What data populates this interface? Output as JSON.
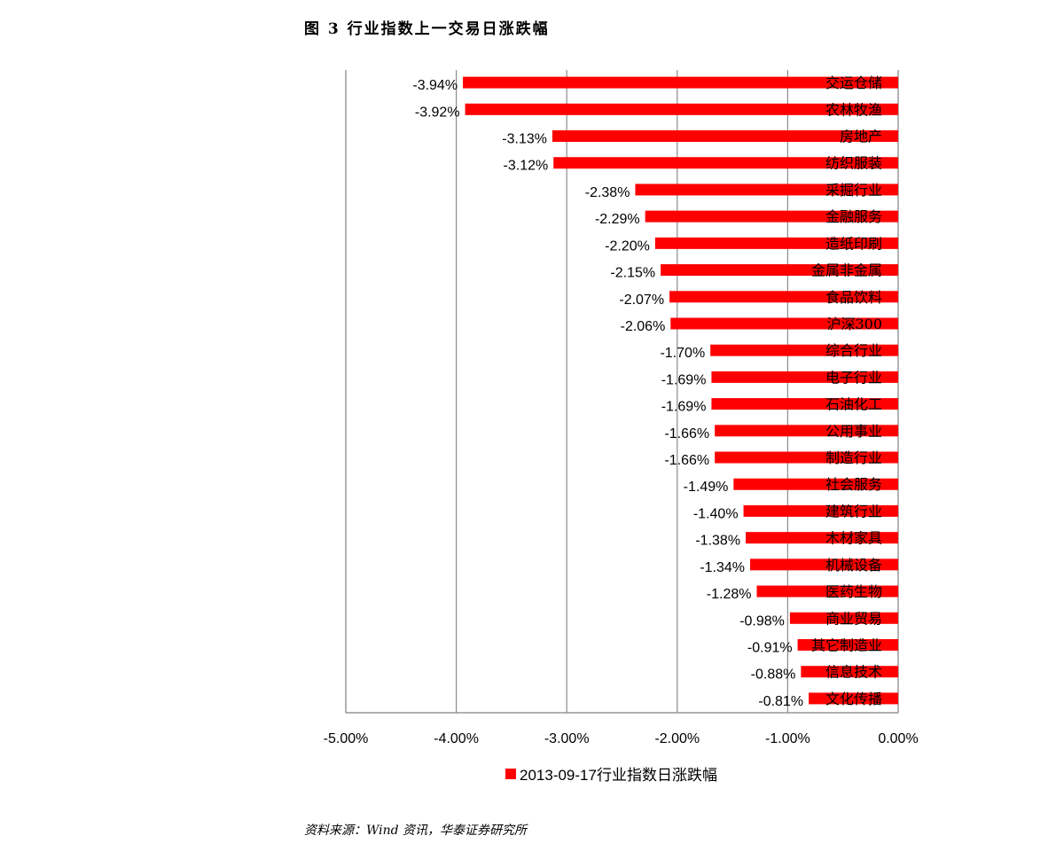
{
  "header": {
    "title": "图 3   行业指数上一交易日涨跌幅"
  },
  "chart_data": {
    "type": "bar",
    "orientation": "horizontal",
    "categories": [
      "交运仓储",
      "农林牧渔",
      "房地产",
      "纺织服装",
      "采掘行业",
      "金融服务",
      "造纸印刷",
      "金属非金属",
      "食品饮料",
      "沪深300",
      "综合行业",
      "电子行业",
      "石油化工",
      "公用事业",
      "制造行业",
      "社会服务",
      "建筑行业",
      "木材家具",
      "机械设备",
      "医药生物",
      "商业贸易",
      "其它制造业",
      "信息技术",
      "文化传播"
    ],
    "series": [
      {
        "name": "2013-09-17行业指数日涨跌幅",
        "values": [
          -3.94,
          -3.92,
          -3.13,
          -3.12,
          -2.38,
          -2.29,
          -2.2,
          -2.15,
          -2.07,
          -2.06,
          -1.7,
          -1.69,
          -1.69,
          -1.66,
          -1.66,
          -1.49,
          -1.4,
          -1.38,
          -1.34,
          -1.28,
          -0.98,
          -0.91,
          -0.88,
          -0.81
        ],
        "labels": [
          "-3.94%",
          "-3.92%",
          "-3.13%",
          "-3.12%",
          "-2.38%",
          "-2.29%",
          "-2.20%",
          "-2.15%",
          "-2.07%",
          "-2.06%",
          "-1.70%",
          "-1.69%",
          "-1.69%",
          "-1.66%",
          "-1.66%",
          "-1.49%",
          "-1.40%",
          "-1.38%",
          "-1.34%",
          "-1.28%",
          "-0.98%",
          "-0.91%",
          "-0.88%",
          "-0.81%"
        ]
      }
    ],
    "xlim": [
      -5,
      0
    ],
    "xticks": [
      -5,
      -4,
      -3,
      -2,
      -1,
      0
    ],
    "xtick_labels": [
      "-5.00%",
      "-4.00%",
      "-3.00%",
      "-2.00%",
      "-1.00%",
      "0.00%"
    ],
    "grid": true,
    "legend_position": "bottom",
    "bar_color": "#ff0000"
  },
  "legend": {
    "label": "2013-09-17行业指数日涨跌幅"
  },
  "source": {
    "text": "资料来源：Wind 资讯，华泰证券研究所"
  }
}
